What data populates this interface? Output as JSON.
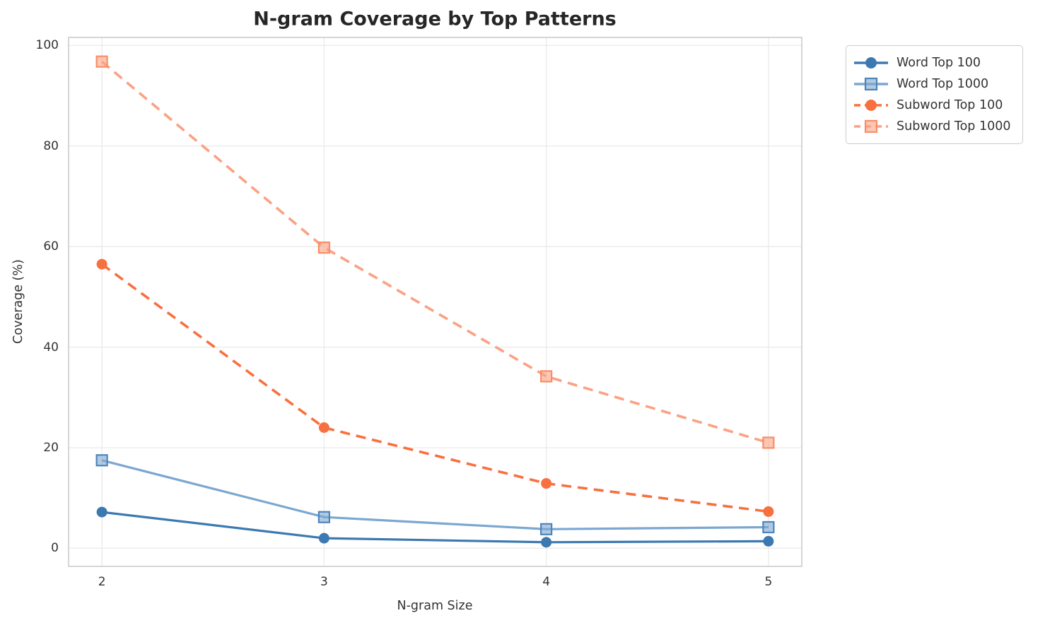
{
  "chart_data": {
    "type": "line",
    "title": "N-gram Coverage by Top Patterns",
    "xlabel": "N-gram Size",
    "ylabel": "Coverage (%)",
    "x": [
      2,
      3,
      4,
      5
    ],
    "xtick_labels": [
      "2",
      "3",
      "4",
      "5"
    ],
    "yticks": [
      0,
      20,
      40,
      60,
      80,
      100
    ],
    "xlim": [
      1.85,
      5.15
    ],
    "ylim": [
      -3.6,
      101.6
    ],
    "grid": true,
    "legend_position": "outside-upper-right",
    "series": [
      {
        "name": "Word Top 100",
        "values": [
          7.2,
          2.0,
          1.2,
          1.4
        ],
        "color": "#3d79b1",
        "edge_color": "#3d79b1",
        "line_style": "solid",
        "marker": "circle"
      },
      {
        "name": "Word Top 1000",
        "values": [
          17.5,
          6.2,
          3.8,
          4.2
        ],
        "color": "#7ba7d1",
        "edge_color": "#4e84ba",
        "line_style": "solid",
        "marker": "square"
      },
      {
        "name": "Subword Top 100",
        "values": [
          56.5,
          24.0,
          12.9,
          7.3
        ],
        "color": "#f8703f",
        "edge_color": "#f8703f",
        "line_style": "dashed",
        "marker": "circle"
      },
      {
        "name": "Subword Top 1000",
        "values": [
          96.8,
          59.8,
          34.2,
          21.0
        ],
        "color": "#fba184",
        "edge_color": "#f98e66",
        "line_style": "dashed",
        "marker": "square"
      }
    ],
    "style": {
      "grid_color": "#eaeaea",
      "spine_color": "#cccccc",
      "tick_label_color": "#333333",
      "title_color": "#262626",
      "background": "#ffffff",
      "legend_border_color": "#cccccc"
    }
  }
}
